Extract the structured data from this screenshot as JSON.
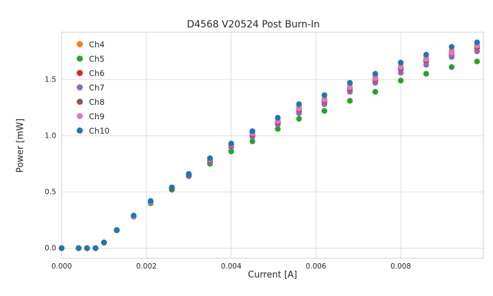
{
  "chart_data": {
    "type": "scatter",
    "title": "D4568 V20524 Post Burn-In",
    "xlabel": "Current [A]",
    "ylabel": "Power [mW]",
    "xlim": [
      0,
      0.00995
    ],
    "ylim": [
      -0.09,
      1.92
    ],
    "xticks": [
      0,
      0.002,
      0.004,
      0.006,
      0.008
    ],
    "xtick_labels": [
      "0.000",
      "0.002",
      "0.004",
      "0.006",
      "0.008"
    ],
    "yticks": [
      0.0,
      0.5,
      1.0,
      1.5
    ],
    "ytick_labels": [
      "0.0",
      "0.5",
      "1.0",
      "1.5"
    ],
    "grid": true,
    "legend_position": "upper left",
    "x": [
      0.0,
      0.0004,
      0.0006,
      0.0008,
      0.001,
      0.0013,
      0.0017,
      0.0021,
      0.0026,
      0.003,
      0.0035,
      0.004,
      0.0045,
      0.0051,
      0.0056,
      0.0062,
      0.0068,
      0.0074,
      0.008,
      0.0086,
      0.0092,
      0.0098
    ],
    "series": [
      {
        "name": "Ch4",
        "color": "#ff7f0e",
        "values": [
          0.0,
          0.0,
          0.0,
          0.0,
          0.05,
          0.16,
          0.28,
          0.41,
          0.53,
          0.65,
          0.79,
          0.92,
          1.02,
          1.13,
          1.25,
          1.33,
          1.44,
          1.52,
          1.62,
          1.69,
          1.76,
          1.81
        ]
      },
      {
        "name": "Ch5",
        "color": "#2ca02c",
        "values": [
          0.0,
          0.0,
          0.0,
          0.0,
          0.05,
          0.16,
          0.28,
          0.4,
          0.52,
          0.64,
          0.75,
          0.86,
          0.95,
          1.06,
          1.15,
          1.22,
          1.31,
          1.39,
          1.49,
          1.55,
          1.61,
          1.66
        ]
      },
      {
        "name": "Ch6",
        "color": "#d62728",
        "values": [
          0.0,
          0.0,
          0.0,
          0.0,
          0.05,
          0.16,
          0.28,
          0.41,
          0.53,
          0.65,
          0.78,
          0.91,
          1.0,
          1.11,
          1.22,
          1.3,
          1.41,
          1.49,
          1.59,
          1.66,
          1.72,
          1.78
        ]
      },
      {
        "name": "Ch7",
        "color": "#9467bd",
        "values": [
          0.0,
          0.0,
          0.0,
          0.0,
          0.05,
          0.16,
          0.28,
          0.41,
          0.53,
          0.64,
          0.77,
          0.9,
          0.99,
          1.1,
          1.2,
          1.28,
          1.39,
          1.47,
          1.56,
          1.63,
          1.7,
          1.75
        ]
      },
      {
        "name": "Ch8",
        "color": "#8c564b",
        "values": [
          0.0,
          0.0,
          0.0,
          0.0,
          0.05,
          0.16,
          0.28,
          0.41,
          0.53,
          0.65,
          0.78,
          0.91,
          1.01,
          1.12,
          1.23,
          1.31,
          1.42,
          1.5,
          1.6,
          1.67,
          1.74,
          1.79
        ]
      },
      {
        "name": "Ch9",
        "color": "#e377c2",
        "values": [
          0.0,
          0.0,
          0.0,
          0.0,
          0.05,
          0.16,
          0.28,
          0.41,
          0.54,
          0.66,
          0.79,
          0.92,
          1.02,
          1.13,
          1.24,
          1.32,
          1.43,
          1.51,
          1.61,
          1.68,
          1.74,
          1.8
        ]
      },
      {
        "name": "Ch10",
        "color": "#1f77b4",
        "values": [
          0.0,
          0.0,
          0.0,
          0.0,
          0.05,
          0.16,
          0.29,
          0.42,
          0.54,
          0.66,
          0.8,
          0.93,
          1.04,
          1.16,
          1.28,
          1.36,
          1.47,
          1.55,
          1.65,
          1.72,
          1.79,
          1.83
        ]
      }
    ]
  }
}
